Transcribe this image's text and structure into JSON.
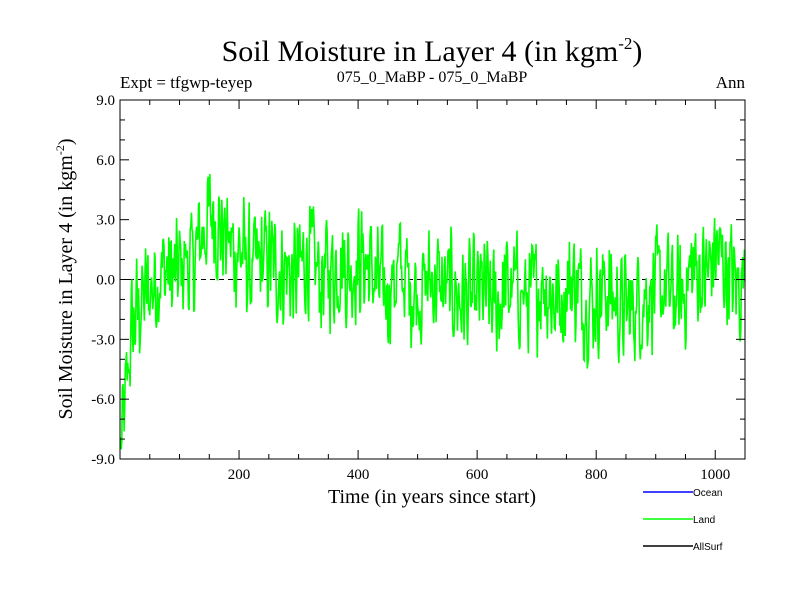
{
  "chart_data": {
    "type": "line",
    "title": "Soil Moisture in Layer 4 (in kgm",
    "title_sup": "-2",
    "title_close": ")",
    "subtitle_left": "Expt = tfgwp-teyep",
    "subtitle_center": "075_0_MaBP - 075_0_MaBP",
    "subtitle_right": "Ann",
    "xlabel": "Time (in years since start)",
    "ylabel": "Soil Moisture in Layer 4 (in kgm",
    "ylabel_sup": "-2",
    "ylabel_close": ")",
    "xlim": [
      0,
      1050
    ],
    "ylim": [
      -9.0,
      9.0
    ],
    "xticks": [
      200,
      400,
      600,
      800,
      1000
    ],
    "xtick_labels": [
      "200",
      "400",
      "600",
      "800",
      "1000"
    ],
    "yticks": [
      -9.0,
      -6.0,
      -3.0,
      0.0,
      3.0,
      6.0,
      9.0
    ],
    "ytick_labels": [
      "-9.0",
      "-6.0",
      "-3.0",
      "0.0",
      "3.0",
      "6.0",
      "9.0"
    ],
    "zero_line": true,
    "legend": [
      {
        "name": "Ocean",
        "color": "#0000ff"
      },
      {
        "name": "Land",
        "color": "#00ff00"
      },
      {
        "name": "AllSurf",
        "color": "#000000"
      }
    ],
    "series": [
      {
        "name": "Land",
        "color": "#00ff00",
        "x_start": 1,
        "x_step": 1,
        "count": 1050,
        "anchor_x": [
          1,
          5,
          10,
          15,
          20,
          30,
          40,
          50,
          60,
          70,
          80,
          90,
          100,
          110,
          120,
          130,
          140,
          150,
          155,
          160,
          165,
          170,
          180,
          190,
          200,
          210,
          220,
          230,
          240,
          250,
          260,
          270,
          280,
          290,
          300,
          310,
          320,
          330,
          340,
          350,
          360,
          370,
          380,
          390,
          400,
          410,
          420,
          430,
          440,
          450,
          460,
          470,
          480,
          490,
          500,
          510,
          520,
          530,
          540,
          550,
          560,
          570,
          580,
          590,
          600,
          610,
          620,
          630,
          640,
          650,
          660,
          670,
          680,
          690,
          700,
          710,
          720,
          730,
          740,
          750,
          760,
          770,
          780,
          790,
          800,
          810,
          820,
          830,
          840,
          850,
          860,
          870,
          880,
          890,
          900,
          910,
          920,
          930,
          940,
          950,
          960,
          970,
          980,
          990,
          1000,
          1010,
          1020,
          1030,
          1040,
          1050
        ],
        "anchor_y": [
          -8.5,
          -7.5,
          -6.0,
          -4.0,
          -2.5,
          -1.5,
          -1.0,
          -0.5,
          0.0,
          0.5,
          0.5,
          0.0,
          0.5,
          1.0,
          0.5,
          1.5,
          2.5,
          3.0,
          3.5,
          3.0,
          2.5,
          2.5,
          2.0,
          1.5,
          1.5,
          1.0,
          0.5,
          0.5,
          1.0,
          1.0,
          0.5,
          0.5,
          0.5,
          0.0,
          0.5,
          1.0,
          1.0,
          0.5,
          0.0,
          0.5,
          0.5,
          1.0,
          0.5,
          0.5,
          1.0,
          1.0,
          0.5,
          0.0,
          -0.5,
          -0.5,
          0.0,
          0.5,
          0.0,
          -0.5,
          -0.5,
          -0.5,
          0.0,
          0.0,
          -0.5,
          -0.5,
          -0.5,
          -1.0,
          -1.0,
          -1.0,
          -1.0,
          -0.5,
          -1.0,
          -1.5,
          -1.0,
          -0.5,
          -0.5,
          -0.5,
          -1.0,
          -1.0,
          -0.5,
          0.0,
          -0.5,
          -1.0,
          -1.0,
          -0.5,
          0.0,
          -0.5,
          -1.0,
          -1.0,
          -1.0,
          -0.5,
          -0.5,
          -1.0,
          -1.5,
          -1.5,
          -1.5,
          -1.0,
          -1.0,
          -0.5,
          -0.5,
          -0.5,
          -0.5,
          -1.0,
          -1.0,
          -0.5,
          0.5,
          0.5,
          0.0,
          0.5,
          1.5,
          1.0,
          0.5,
          0.0,
          -0.5,
          0.5
        ],
        "noise_amplitude": 2.6
      }
    ]
  }
}
